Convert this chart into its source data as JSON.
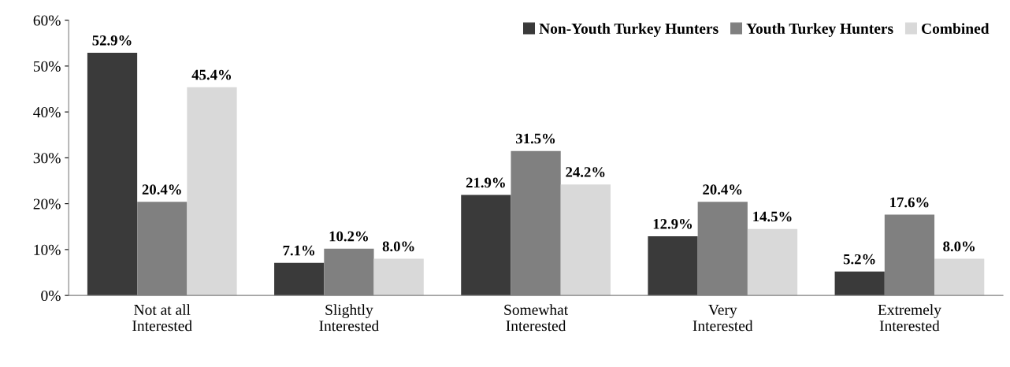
{
  "chart_data": {
    "type": "bar",
    "categories": [
      "Not at all\nInterested",
      "Slightly\nInterested",
      "Somewhat\nInterested",
      "Very\nInterested",
      "Extremely\nInterested"
    ],
    "series": [
      {
        "name": "Non-Youth Turkey Hunters",
        "color": "#3a3a3a",
        "values": [
          52.9,
          7.1,
          21.9,
          12.9,
          5.2
        ],
        "value_labels": [
          "52.9%",
          "7.1%",
          "21.9%",
          "12.9%",
          "5.2%"
        ]
      },
      {
        "name": "Youth Turkey Hunters",
        "color": "#808080",
        "values": [
          20.4,
          10.2,
          31.5,
          20.4,
          17.6
        ],
        "value_labels": [
          "20.4%",
          "10.2%",
          "31.5%",
          "20.4%",
          "17.6%"
        ]
      },
      {
        "name": "Combined",
        "color": "#d9d9d9",
        "values": [
          45.4,
          8.0,
          24.2,
          14.5,
          8.0
        ],
        "value_labels": [
          "45.4%",
          "8.0%",
          "24.2%",
          "14.5%",
          "8.0%"
        ]
      }
    ],
    "ylim": [
      0,
      60
    ],
    "yticks": [
      {
        "value": 0,
        "label": "0%"
      },
      {
        "value": 10,
        "label": "10%"
      },
      {
        "value": 20,
        "label": "20%"
      },
      {
        "value": 30,
        "label": "30%"
      },
      {
        "value": 40,
        "label": "40%"
      },
      {
        "value": 50,
        "label": "50%"
      },
      {
        "value": 60,
        "label": "60%"
      }
    ],
    "grid": false,
    "legend": "top right"
  }
}
